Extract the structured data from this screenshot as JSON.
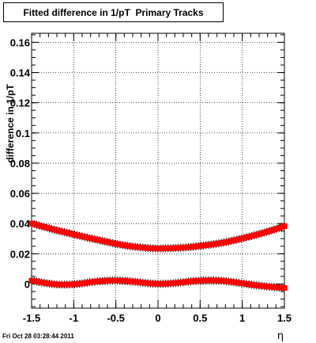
{
  "title": "Fitted difference in 1/pT  Primary Tracks",
  "timestamp": "Fri Oct 28 03:28:44 2011",
  "chart_data": {
    "type": "line",
    "title": "Fitted difference in 1/pT  Primary Tracks",
    "xlabel": "η",
    "ylabel": "difference in 1/pT",
    "xlim": [
      -1.5,
      1.5
    ],
    "ylim": [
      -0.016,
      0.166
    ],
    "x_ticks": [
      "-1.5",
      "-1",
      "-0.5",
      "0",
      "0.5",
      "1",
      "1.5"
    ],
    "y_ticks": [
      "0",
      "0.02",
      "0.04",
      "0.06",
      "0.08",
      "0.1",
      "0.12",
      "0.14",
      "0.16"
    ],
    "grid": true,
    "marker_color": "#ff0000",
    "error_color": "#000000",
    "x": [
      -1.5,
      -1.4,
      -1.3,
      -1.2,
      -1.1,
      -1.0,
      -0.9,
      -0.8,
      -0.7,
      -0.6,
      -0.5,
      -0.4,
      -0.3,
      -0.2,
      -0.1,
      0.0,
      0.1,
      0.2,
      0.3,
      0.4,
      0.5,
      0.6,
      0.7,
      0.8,
      0.9,
      1.0,
      1.1,
      1.2,
      1.3,
      1.4,
      1.5
    ],
    "series": [
      {
        "values": [
          0.04,
          0.0385,
          0.037,
          0.0355,
          0.0342,
          0.0328,
          0.0315,
          0.0302,
          0.029,
          0.0278,
          0.0266,
          0.0256,
          0.0248,
          0.0242,
          0.0237,
          0.0235,
          0.0236,
          0.0238,
          0.0241,
          0.0246,
          0.0252,
          0.0259,
          0.0267,
          0.0277,
          0.0289,
          0.0302,
          0.0316,
          0.0331,
          0.0347,
          0.0364,
          0.0383
        ]
      },
      {
        "values": [
          0.0022,
          0.0012,
          0.0003,
          -0.0003,
          -0.0004,
          -0.0002,
          0.0004,
          0.0012,
          0.0018,
          0.0022,
          0.0023,
          0.0021,
          0.0016,
          0.001,
          0.0004,
          0.0001,
          0.0002,
          0.0006,
          0.0012,
          0.0018,
          0.0022,
          0.0024,
          0.0023,
          0.0019,
          0.0012,
          0.0004,
          -0.0004,
          -0.0011,
          -0.0017,
          -0.0022,
          -0.0026
        ]
      }
    ]
  }
}
